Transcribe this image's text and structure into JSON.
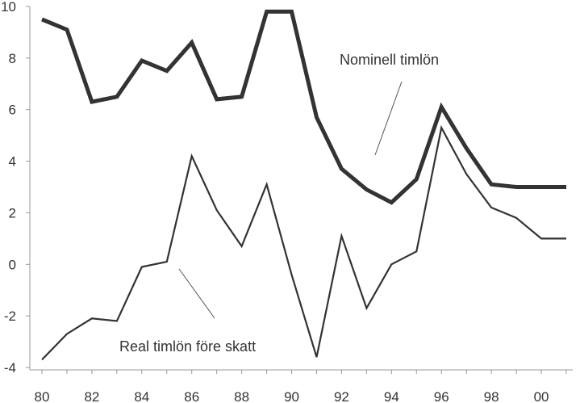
{
  "chart_data": {
    "type": "line",
    "title": "",
    "xlabel": "",
    "ylabel": "",
    "x": [
      1980,
      1981,
      1982,
      1983,
      1984,
      1985,
      1986,
      1987,
      1988,
      1989,
      1990,
      1991,
      1992,
      1993,
      1994,
      1995,
      1996,
      1997,
      1998,
      1999,
      2000,
      2001
    ],
    "xlim": [
      1980,
      2001
    ],
    "ylim": [
      -4,
      10
    ],
    "x_ticks": [
      1980,
      1982,
      1984,
      1986,
      1988,
      1990,
      1992,
      1994,
      1996,
      1998,
      2000
    ],
    "x_tick_labels": [
      "80",
      "82",
      "84",
      "86",
      "88",
      "90",
      "92",
      "94",
      "96",
      "98",
      "00"
    ],
    "y_ticks": [
      -4,
      -2,
      0,
      2,
      4,
      6,
      8,
      10
    ],
    "y_tick_labels": [
      "-4",
      "-2",
      "0",
      "2",
      "4",
      "6",
      "8",
      "10"
    ],
    "grid": false,
    "series": [
      {
        "name": "Nominell timlön",
        "values": [
          9.5,
          9.1,
          6.3,
          6.5,
          7.9,
          7.5,
          8.6,
          6.4,
          6.5,
          9.8,
          9.8,
          5.7,
          3.7,
          2.9,
          2.4,
          3.3,
          6.1,
          4.5,
          3.1,
          3.0,
          3.0,
          3.0
        ],
        "color": "#333333",
        "style": "thick"
      },
      {
        "name": "Real timlön före skatt",
        "values": [
          -3.7,
          -2.7,
          -2.1,
          -2.2,
          -0.1,
          0.1,
          4.2,
          2.1,
          0.7,
          3.1,
          -0.4,
          -3.6,
          1.1,
          -1.7,
          0.0,
          0.5,
          5.3,
          3.5,
          2.2,
          1.8,
          1.0,
          1.0
        ],
        "color": "#333333",
        "style": "thin"
      }
    ],
    "annotations": [
      {
        "text": "Nominell timlön",
        "series": 0
      },
      {
        "text": "Real timlön före skatt",
        "series": 1
      }
    ]
  }
}
